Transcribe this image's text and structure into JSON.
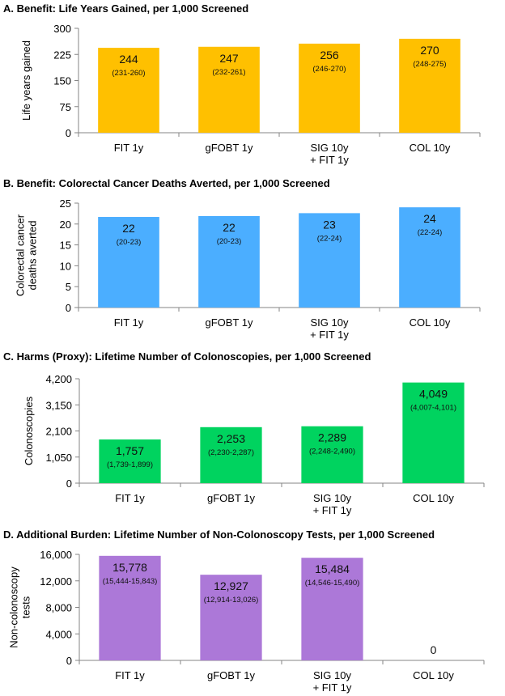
{
  "chart_data": [
    {
      "type": "bar",
      "title": "A. Benefit: Life Years Gained, per 1,000 Screened",
      "ylabel": "Life years gained",
      "ylabel_lines": [
        "Life years gained"
      ],
      "xlabel": "",
      "categories": [
        "FIT 1y",
        "gFOBT 1y",
        "SIG 10y + FIT 1y",
        "COL 10y"
      ],
      "category_lines": [
        [
          "FIT 1y"
        ],
        [
          "gFOBT 1y"
        ],
        [
          "SIG 10y",
          "+ FIT 1y"
        ],
        [
          "COL 10y"
        ]
      ],
      "values": [
        244,
        247,
        256,
        270
      ],
      "value_labels": [
        "244",
        "247",
        "256",
        "270"
      ],
      "ci_labels": [
        "(231-260)",
        "(232-261)",
        "(246-270)",
        "(248-275)"
      ],
      "ylim": [
        0,
        300
      ],
      "yticks": [
        0,
        75,
        150,
        225,
        300
      ],
      "ytick_labels": [
        "0",
        "75",
        "150",
        "225",
        "300"
      ],
      "color": "#FFC000",
      "grid": false,
      "legend": "none"
    },
    {
      "type": "bar",
      "title": "B. Benefit: Colorectal Cancer Deaths Averted, per 1,000 Screened",
      "ylabel": "Colorectal cancer deaths averted",
      "ylabel_lines": [
        "Colorectal cancer",
        "deaths averted"
      ],
      "xlabel": "",
      "categories": [
        "FIT 1y",
        "gFOBT 1y",
        "SIG 10y + FIT 1y",
        "COL 10y"
      ],
      "category_lines": [
        [
          "FIT 1y"
        ],
        [
          "gFOBT 1y"
        ],
        [
          "SIG 10y",
          "+ FIT 1y"
        ],
        [
          "COL 10y"
        ]
      ],
      "values": [
        21.7,
        21.9,
        22.6,
        24.0
      ],
      "value_labels": [
        "22",
        "22",
        "23",
        "24"
      ],
      "ci_labels": [
        "(20-23)",
        "(20-23)",
        "(22-24)",
        "(22-24)"
      ],
      "ylim": [
        0,
        25
      ],
      "yticks": [
        0,
        5,
        10,
        15,
        20,
        25
      ],
      "ytick_labels": [
        "0",
        "5",
        "10",
        "15",
        "20",
        "25"
      ],
      "color": "#4BAEFF",
      "grid": false,
      "legend": "none"
    },
    {
      "type": "bar",
      "title": "C. Harms (Proxy): Lifetime Number of Colonoscopies, per 1,000 Screened",
      "ylabel": "Colonoscopies",
      "ylabel_lines": [
        "Colonoscopies"
      ],
      "xlabel": "",
      "categories": [
        "FIT 1y",
        "gFOBT 1y",
        "SIG 10y + FIT 1y",
        "COL 10y"
      ],
      "category_lines": [
        [
          "FIT 1y"
        ],
        [
          "gFOBT 1y"
        ],
        [
          "SIG 10y",
          "+ FIT 1y"
        ],
        [
          "COL 10y"
        ]
      ],
      "values": [
        1757,
        2253,
        2289,
        4049
      ],
      "value_labels": [
        "1,757",
        "2,253",
        "2,289",
        "4,049"
      ],
      "ci_labels": [
        "(1,739-1,899)",
        "(2,230-2,287)",
        "(2,248-2,490)",
        "(4,007-4,101)"
      ],
      "ylim": [
        0,
        4200
      ],
      "yticks": [
        0,
        1050,
        2100,
        3150,
        4200
      ],
      "ytick_labels": [
        "0",
        "1,050",
        "2,100",
        "3,150",
        "4,200"
      ],
      "color": "#00D35F",
      "grid": false,
      "legend": "none"
    },
    {
      "type": "bar",
      "title": "D. Additional Burden: Lifetime Number of Non-Colonoscopy Tests, per 1,000 Screened",
      "ylabel": "Non-colonoscopy tests",
      "ylabel_lines": [
        "Non-colonoscopy",
        "tests"
      ],
      "xlabel": "",
      "categories": [
        "FIT 1y",
        "gFOBT 1y",
        "SIG 10y + FIT 1y",
        "COL 10y"
      ],
      "category_lines": [
        [
          "FIT 1y"
        ],
        [
          "gFOBT 1y"
        ],
        [
          "SIG 10y",
          "+ FIT 1y"
        ],
        [
          "COL 10y"
        ]
      ],
      "values": [
        15778,
        12927,
        15484,
        0
      ],
      "value_labels": [
        "15,778",
        "12,927",
        "15,484",
        "0"
      ],
      "ci_labels": [
        "(15,444-15,843)",
        "(12,914-13,026)",
        "(14,546-15,490)",
        ""
      ],
      "ylim": [
        0,
        16000
      ],
      "yticks": [
        0,
        4000,
        8000,
        12000,
        16000
      ],
      "ytick_labels": [
        "0",
        "4,000",
        "8,000",
        "12,000",
        "16,000"
      ],
      "color": "#AC78D8",
      "grid": false,
      "legend": "none"
    }
  ]
}
